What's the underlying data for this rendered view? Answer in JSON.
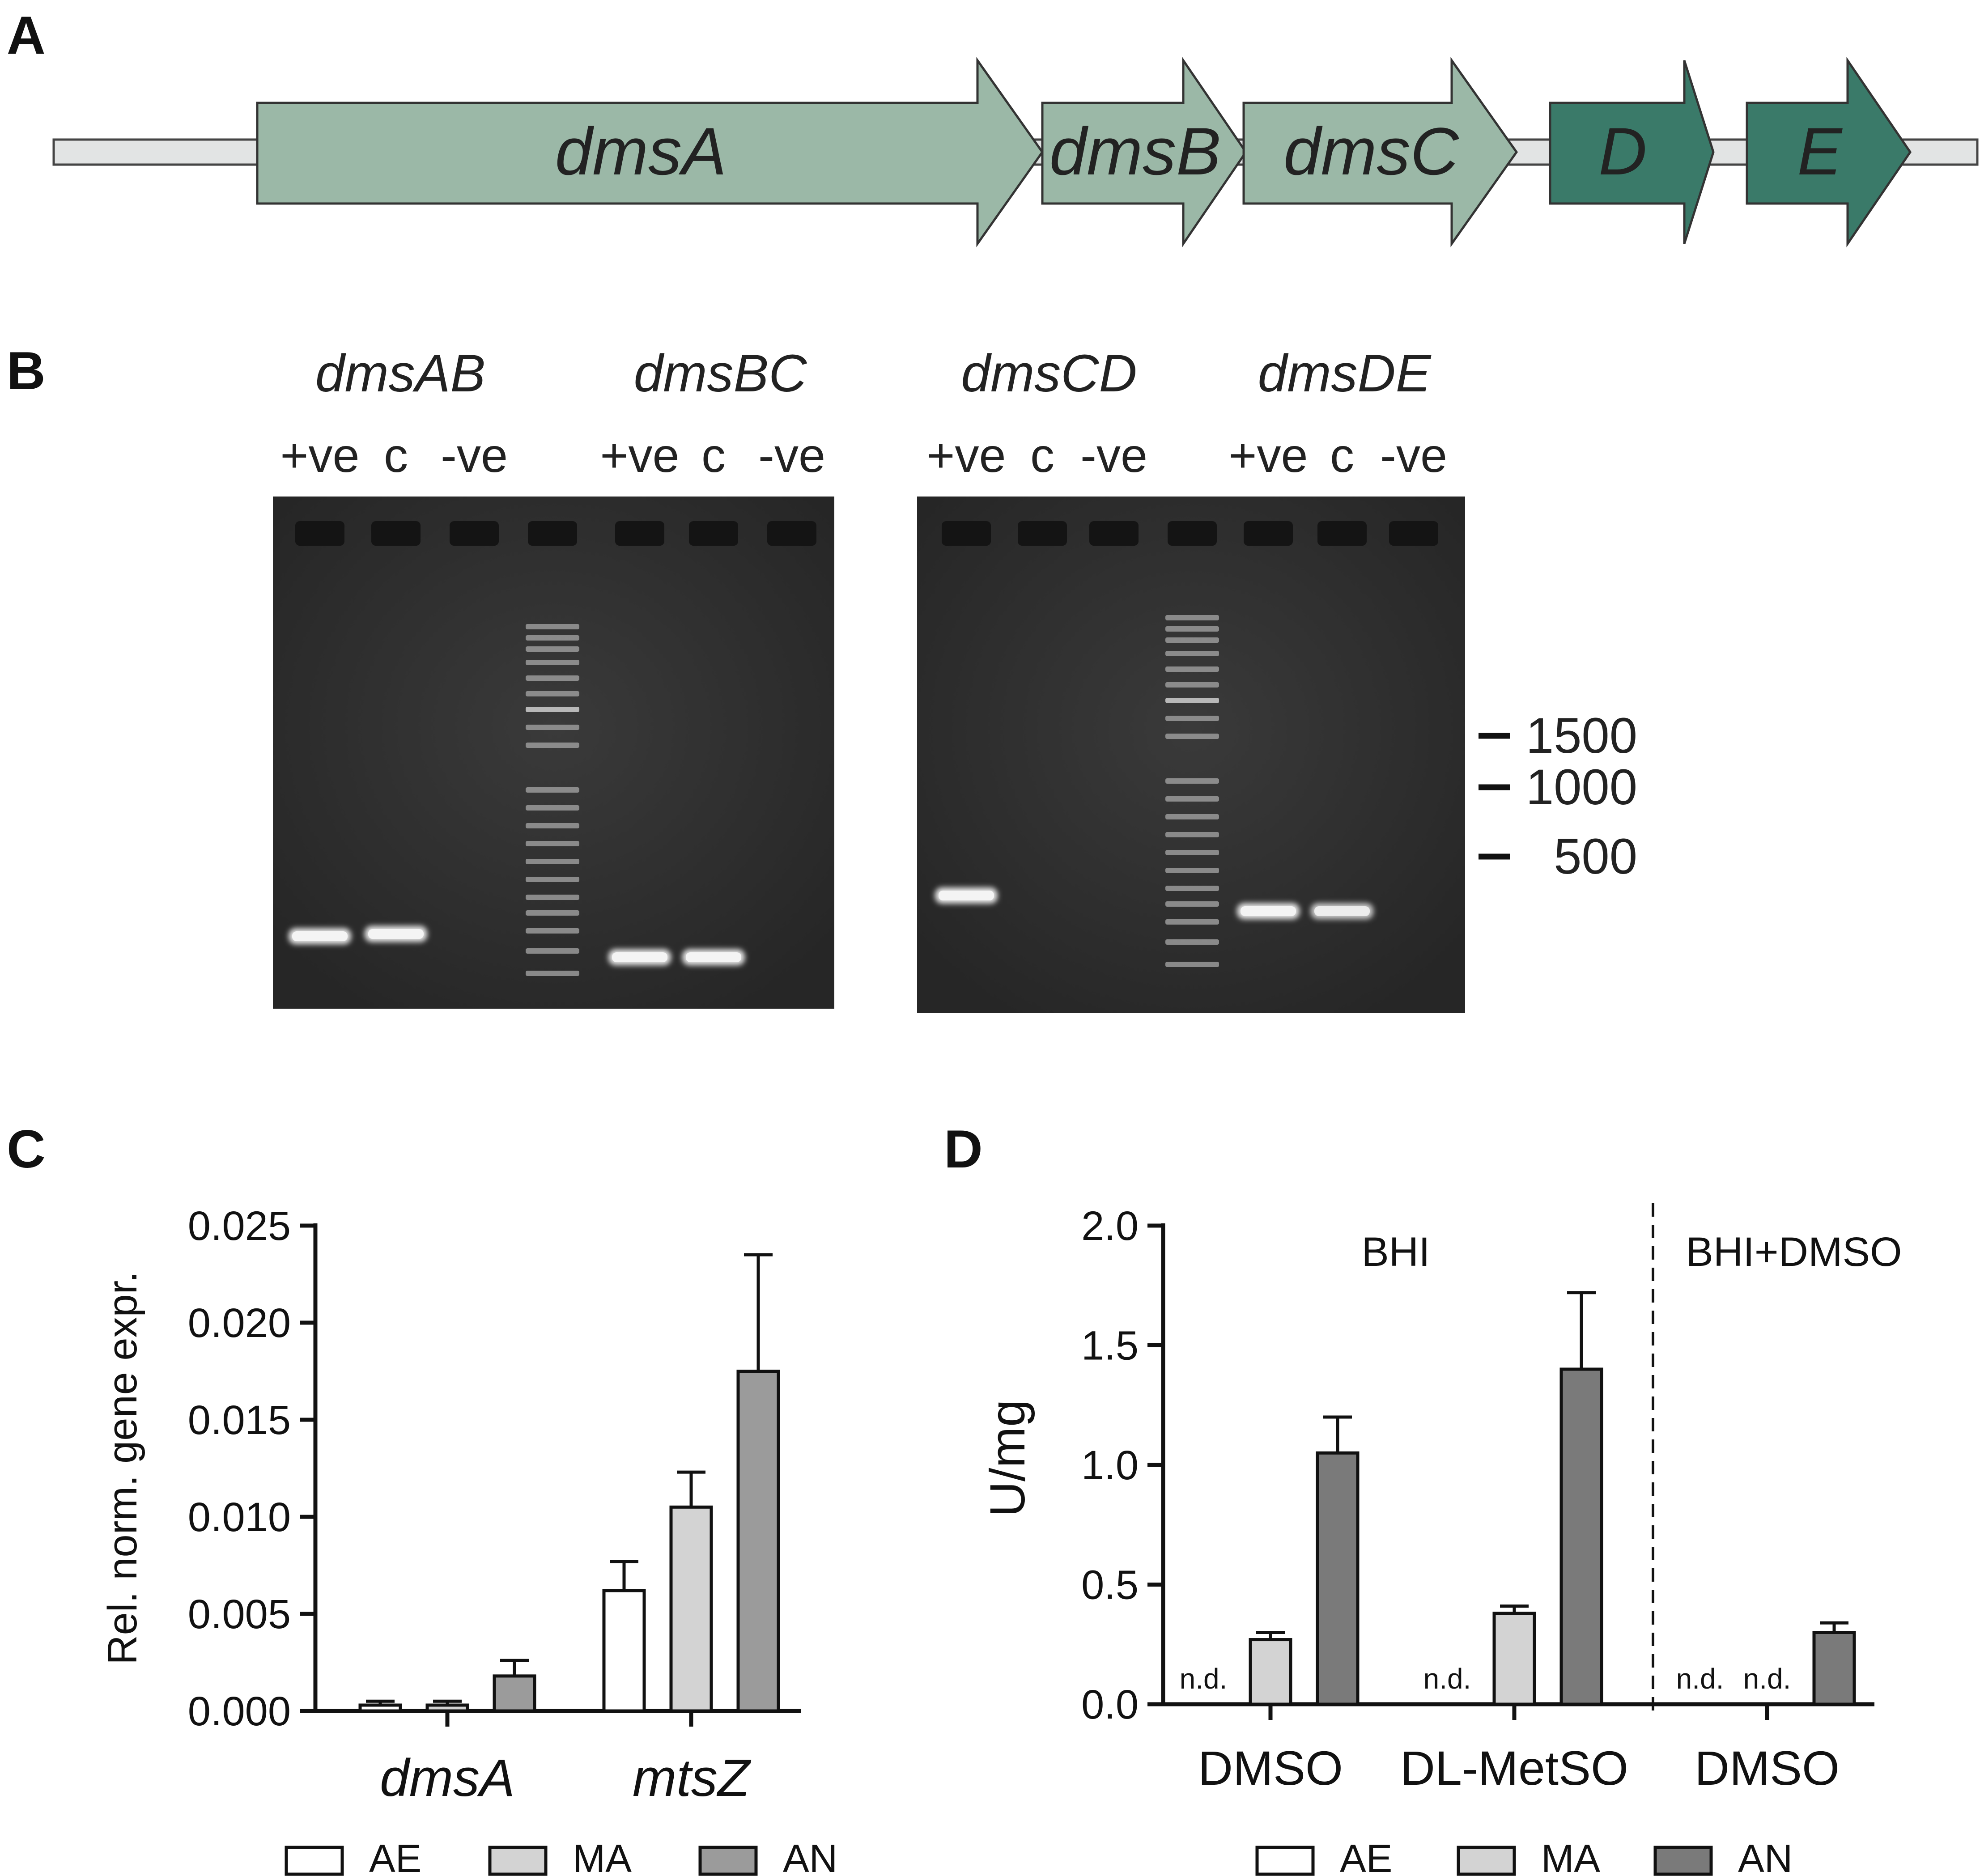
{
  "panels": {
    "A": "A",
    "B": "B",
    "C": "C",
    "D": "D"
  },
  "colors": {
    "gene_light": "#9bb8a7",
    "gene_dark": "#3a7a69",
    "backbone": "#e2e4e4",
    "gel_background": "#2e2e2e",
    "bar_AE": "#ffffff",
    "bar_MA": "#d3d3d3",
    "bar_AN_C": "#9b9b9b",
    "bar_AN_D": "#7a7a7a"
  },
  "gene_diagram": {
    "genes": [
      {
        "label": "dmsA",
        "shade": "light"
      },
      {
        "label": "dmsB",
        "shade": "light"
      },
      {
        "label": "dmsC",
        "shade": "light"
      },
      {
        "label": "D",
        "shade": "dark"
      },
      {
        "label": "E",
        "shade": "dark"
      }
    ]
  },
  "gels": {
    "left": {
      "groups": [
        {
          "title": "dmsAB",
          "lanes": [
            "+ve",
            "c",
            "-ve"
          ]
        },
        {
          "title": "dmsBC",
          "lanes": [
            "+ve",
            "c",
            "-ve"
          ]
        }
      ]
    },
    "right": {
      "groups": [
        {
          "title": "dmsCD",
          "lanes": [
            "+ve",
            "c",
            "-ve"
          ]
        },
        {
          "title": "dmsDE",
          "lanes": [
            "+ve",
            "c",
            "-ve"
          ]
        }
      ]
    },
    "size_markers": [
      "1500",
      "1000",
      "500"
    ]
  },
  "chart_data": [
    {
      "type": "bar",
      "panel": "C",
      "ylabel": "Rel. norm. gene expr.",
      "ylim": [
        0,
        0.025
      ],
      "yticks": [
        "0.000",
        "0.005",
        "0.010",
        "0.015",
        "0.020",
        "0.025"
      ],
      "categories": [
        "dmsA",
        "mtsZ"
      ],
      "series": [
        {
          "name": "AE",
          "values": [
            0.0003,
            0.0062
          ],
          "errors": [
            0.0002,
            0.0015
          ]
        },
        {
          "name": "MA",
          "values": [
            0.0003,
            0.0105
          ],
          "errors": [
            0.0002,
            0.0018
          ]
        },
        {
          "name": "AN",
          "values": [
            0.0018,
            0.0175
          ],
          "errors": [
            0.0008,
            0.006
          ]
        }
      ],
      "legend": [
        "AE",
        "MA",
        "AN"
      ],
      "legend_position": "bottom"
    },
    {
      "type": "bar",
      "panel": "D",
      "ylabel": "U/mg",
      "ylim": [
        0,
        2.0
      ],
      "yticks": [
        "0.0",
        "0.5",
        "1.0",
        "1.5",
        "2.0"
      ],
      "categories": [
        "DMSO",
        "DL-MetSO",
        "DMSO"
      ],
      "groups": [
        "BHI",
        "BHI+DMSO"
      ],
      "series": [
        {
          "name": "AE",
          "values": [
            null,
            null,
            null
          ],
          "errors": [
            0,
            0,
            0
          ]
        },
        {
          "name": "MA",
          "values": [
            0.27,
            0.38,
            null
          ],
          "errors": [
            0.03,
            0.03,
            0
          ]
        },
        {
          "name": "AN",
          "values": [
            1.05,
            1.4,
            0.3
          ],
          "errors": [
            0.15,
            0.32,
            0.04
          ]
        }
      ],
      "nd_label": "n.d.",
      "legend": [
        "AE",
        "MA",
        "AN"
      ],
      "legend_position": "bottom"
    }
  ]
}
